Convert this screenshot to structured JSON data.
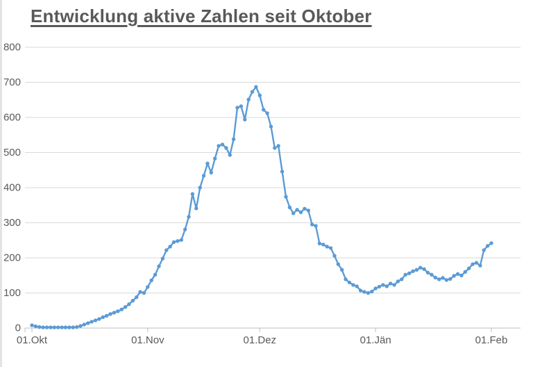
{
  "page": {
    "background": "#FFFFFF",
    "left_edge_color": "#E3E3E3"
  },
  "chart": {
    "title": "Entwicklung aktive Zahlen seit Oktober",
    "title_color": "#595959",
    "line_color": "#5B9BD5",
    "marker_color": "#5B9BD5",
    "gridline_color": "#D9D9D9",
    "axis_line_color": "#BFBFBF",
    "tick_label_color": "#595959"
  },
  "chart_data": {
    "type": "line",
    "title": "Entwicklung aktive Zahlen seit Oktober",
    "xlabel": "",
    "ylabel": "",
    "ylim": [
      0,
      800
    ],
    "y_ticks": [
      0,
      100,
      200,
      300,
      400,
      500,
      600,
      700,
      800
    ],
    "x_tick_labels": [
      "01.Okt",
      "01.Nov",
      "01.Dez",
      "01.Jän",
      "01.Feb"
    ],
    "x_tick_day_indices": [
      0,
      31,
      61,
      92,
      123
    ],
    "grid": "horizontal",
    "legend": "none",
    "marker": "circle",
    "series": [
      {
        "values": [
          8,
          5,
          3,
          2,
          2,
          2,
          2,
          2,
          2,
          2,
          2,
          2,
          3,
          6,
          10,
          14,
          18,
          22,
          26,
          31,
          35,
          40,
          44,
          48,
          53,
          60,
          68,
          78,
          88,
          103,
          100,
          117,
          136,
          152,
          176,
          198,
          222,
          232,
          245,
          248,
          251,
          281,
          317,
          382,
          341,
          400,
          434,
          469,
          443,
          483,
          519,
          523,
          513,
          493,
          538,
          628,
          632,
          594,
          651,
          673,
          687,
          663,
          622,
          612,
          574,
          513,
          519,
          446,
          374,
          344,
          327,
          337,
          330,
          340,
          335,
          295,
          291,
          241,
          238,
          232,
          228,
          206,
          182,
          166,
          139,
          130,
          123,
          119,
          107,
          103,
          100,
          104,
          113,
          118,
          123,
          119,
          127,
          123,
          133,
          139,
          152,
          156,
          162,
          166,
          172,
          168,
          158,
          152,
          144,
          139,
          143,
          137,
          140,
          149,
          154,
          150,
          160,
          170,
          182,
          186,
          178,
          222,
          234,
          242
        ]
      }
    ]
  }
}
